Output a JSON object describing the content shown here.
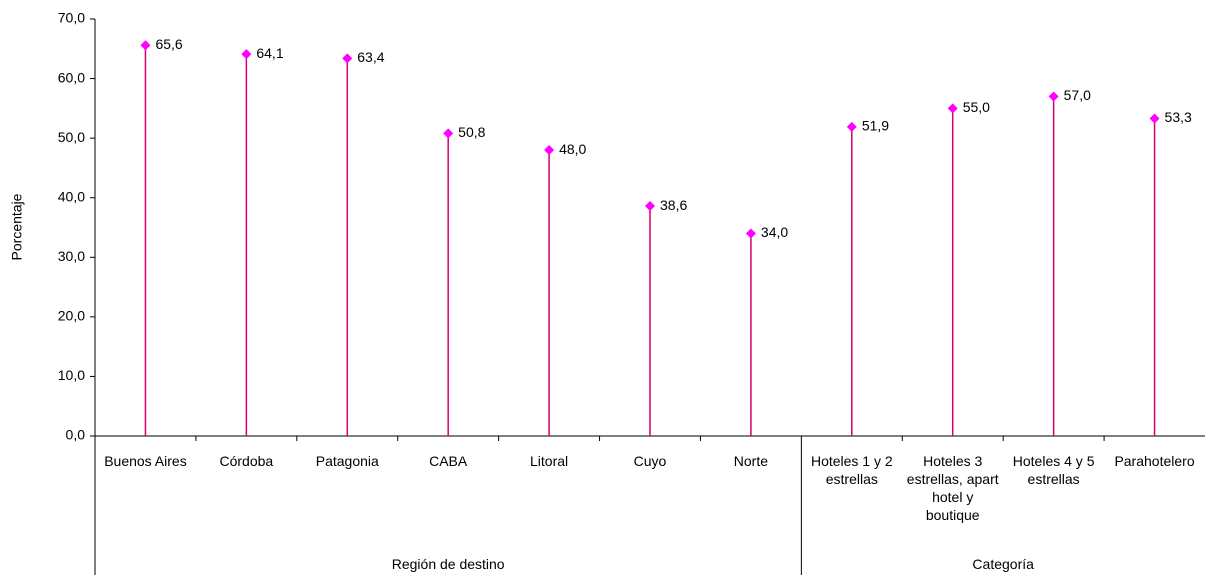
{
  "chart_data": {
    "type": "lollipop",
    "y_label": "Porcentaje",
    "groups": [
      {
        "name": "Región de destino",
        "categories": [
          "Buenos Aires",
          "Córdoba",
          "Patagonia",
          "CABA",
          "Litoral",
          "Cuyo",
          "Norte"
        ],
        "values": [
          65.6,
          64.1,
          63.4,
          50.8,
          48.0,
          38.6,
          34.0
        ],
        "value_labels": [
          "65,6",
          "64,1",
          "63,4",
          "50,8",
          "48,0",
          "38,6",
          "34,0"
        ]
      },
      {
        "name": "Categoría",
        "categories": [
          "Hoteles 1 y 2 estrellas",
          "Hoteles 3 estrellas, apart hotel y boutique",
          "Hoteles 4 y 5 estrellas",
          "Parahotelero"
        ],
        "values": [
          51.9,
          55.0,
          57.0,
          53.3
        ],
        "value_labels": [
          "51,9",
          "55,0",
          "57,0",
          "53,3"
        ]
      }
    ],
    "stem_color": "#d6006f",
    "marker_color": "#ff00ff",
    "ylim": [
      0,
      70
    ],
    "yticks": [
      {
        "value": 0,
        "label": "0,0"
      },
      {
        "value": 10,
        "label": "10,0"
      },
      {
        "value": 20,
        "label": "20,0"
      },
      {
        "value": 30,
        "label": "30,0"
      },
      {
        "value": 40,
        "label": "40,0"
      },
      {
        "value": 50,
        "label": "50,0"
      },
      {
        "value": 60,
        "label": "60,0"
      },
      {
        "value": 70,
        "label": "70,0"
      }
    ]
  }
}
